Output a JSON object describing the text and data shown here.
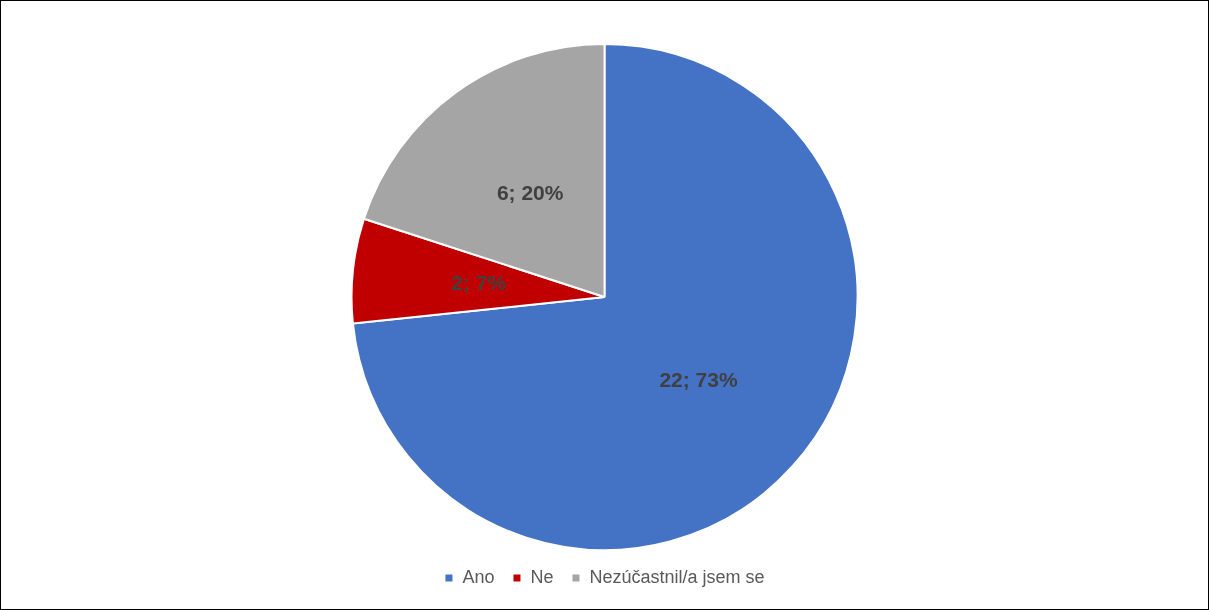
{
  "chart_data": {
    "type": "pie",
    "categories": [
      "Ano",
      "Ne",
      "Nezúčastnil/a jsem se"
    ],
    "values": [
      22,
      2,
      6
    ],
    "colors": [
      "#4472c4",
      "#c00000",
      "#a5a5a5"
    ],
    "value_labels": [
      "22; 73%",
      "2; 7%",
      "6; 20%"
    ],
    "legend": "bottom"
  }
}
